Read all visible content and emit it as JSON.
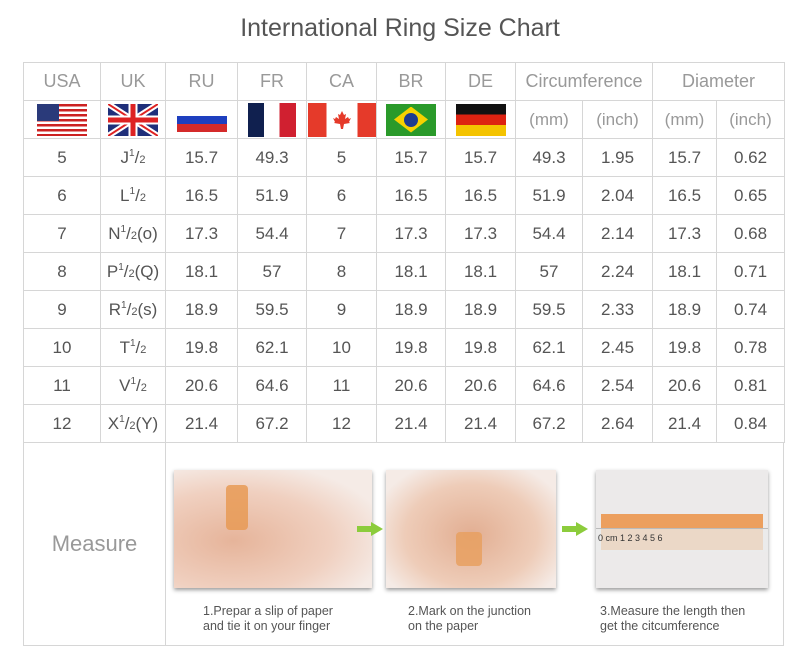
{
  "title": "International Ring Size Chart",
  "headers": {
    "usa": "USA",
    "uk": "UK",
    "ru": "RU",
    "fr": "FR",
    "ca": "CA",
    "br": "BR",
    "de": "DE",
    "circumference": "Circumference",
    "diameter": "Diameter",
    "mm": "(mm)",
    "inch": "(inch)"
  },
  "flags": [
    "us-flag",
    "uk-flag",
    "russia-flag",
    "france-flag",
    "canada-flag",
    "brazil-flag",
    "germany-flag"
  ],
  "rows": [
    {
      "usa": "5",
      "uk_letter": "J",
      "uk_num": "1",
      "uk_den": "2",
      "uk_suffix": "",
      "ru": "15.7",
      "fr": "49.3",
      "ca": "5",
      "br": "15.7",
      "de": "15.7",
      "circ_mm": "49.3",
      "circ_inch": "1.95",
      "dia_mm": "15.7",
      "dia_inch": "0.62"
    },
    {
      "usa": "6",
      "uk_letter": "L",
      "uk_num": "1",
      "uk_den": "2",
      "uk_suffix": "",
      "ru": "16.5",
      "fr": "51.9",
      "ca": "6",
      "br": "16.5",
      "de": "16.5",
      "circ_mm": "51.9",
      "circ_inch": "2.04",
      "dia_mm": "16.5",
      "dia_inch": "0.65"
    },
    {
      "usa": "7",
      "uk_letter": "N",
      "uk_num": "1",
      "uk_den": "2",
      "uk_suffix": "(o)",
      "ru": "17.3",
      "fr": "54.4",
      "ca": "7",
      "br": "17.3",
      "de": "17.3",
      "circ_mm": "54.4",
      "circ_inch": "2.14",
      "dia_mm": "17.3",
      "dia_inch": "0.68"
    },
    {
      "usa": "8",
      "uk_letter": "P",
      "uk_num": "1",
      "uk_den": "2",
      "uk_suffix": "(Q)",
      "ru": "18.1",
      "fr": "57",
      "ca": "8",
      "br": "18.1",
      "de": "18.1",
      "circ_mm": "57",
      "circ_inch": "2.24",
      "dia_mm": "18.1",
      "dia_inch": "0.71"
    },
    {
      "usa": "9",
      "uk_letter": "R",
      "uk_num": "1",
      "uk_den": "2",
      "uk_suffix": "(s)",
      "ru": "18.9",
      "fr": "59.5",
      "ca": "9",
      "br": "18.9",
      "de": "18.9",
      "circ_mm": "59.5",
      "circ_inch": "2.33",
      "dia_mm": "18.9",
      "dia_inch": "0.74"
    },
    {
      "usa": "10",
      "uk_letter": "T",
      "uk_num": "1",
      "uk_den": "2",
      "uk_suffix": "",
      "ru": "19.8",
      "fr": "62.1",
      "ca": "10",
      "br": "19.8",
      "de": "19.8",
      "circ_mm": "62.1",
      "circ_inch": "2.45",
      "dia_mm": "19.8",
      "dia_inch": "0.78"
    },
    {
      "usa": "11",
      "uk_letter": "V",
      "uk_num": "1",
      "uk_den": "2",
      "uk_suffix": "",
      "ru": "20.6",
      "fr": "64.6",
      "ca": "11",
      "br": "20.6",
      "de": "20.6",
      "circ_mm": "64.6",
      "circ_inch": "2.54",
      "dia_mm": "20.6",
      "dia_inch": "0.81"
    },
    {
      "usa": "12",
      "uk_letter": "X",
      "uk_num": "1",
      "uk_den": "2",
      "uk_suffix": "(Y)",
      "ru": "21.4",
      "fr": "67.2",
      "ca": "12",
      "br": "21.4",
      "de": "21.4",
      "circ_mm": "67.2",
      "circ_inch": "2.64",
      "dia_mm": "21.4",
      "dia_inch": "0.84"
    }
  ],
  "measure": {
    "label": "Measure",
    "steps": [
      {
        "line1": "1.Prepar a slip of paper",
        "line2": "and tie it on your finger"
      },
      {
        "line1": "2.Mark on the junction",
        "line2": "on the paper"
      },
      {
        "line1": "3.Measure the length then",
        "line2": "get the citcumference"
      }
    ],
    "ruler_text": "0 cm 1 2 3 4 5 6"
  },
  "colors": {
    "arrow": "#8ccc3c",
    "border": "#d6d6d6"
  }
}
